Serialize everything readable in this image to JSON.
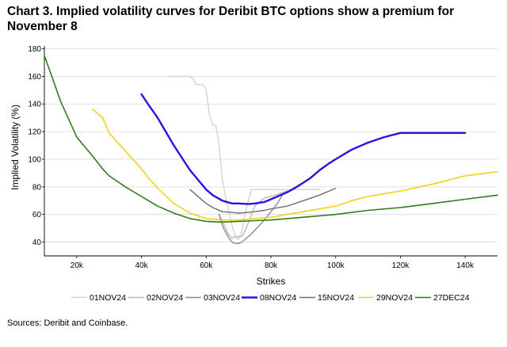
{
  "title": "Chart 3. Implied volatility curves for Deribit BTC options show a premium for November 8",
  "source": "Sources: Deribit and Coinbase.",
  "chart_data": {
    "type": "line",
    "xlabel": "Strikes",
    "ylabel": "Implied Volatility (%)",
    "xlim": [
      10000,
      150000
    ],
    "ylim": [
      30,
      182
    ],
    "x_ticks": [
      20000,
      40000,
      60000,
      80000,
      100000,
      120000,
      140000
    ],
    "x_tick_labels": [
      "20k",
      "40k",
      "60k",
      "80k",
      "100k",
      "120k",
      "140k"
    ],
    "y_ticks": [
      40,
      60,
      80,
      100,
      120,
      140,
      160,
      180
    ],
    "y_tick_labels": [
      "40",
      "60",
      "80",
      "100",
      "120",
      "140",
      "160",
      "180"
    ],
    "grid": "horizontal",
    "legend_position": "bottom",
    "series": [
      {
        "name": "01NOV24",
        "color": "#d3d3d3",
        "width": 1.4,
        "x": [
          48000,
          55000,
          56000,
          57000,
          59000,
          60000,
          61000,
          62000,
          63000,
          64000,
          65000,
          66000,
          67000,
          68000,
          69000,
          70000,
          71000,
          72000,
          73000,
          74000,
          75000,
          80000,
          95000
        ],
        "y": [
          160,
          160,
          158,
          154,
          154,
          150,
          132,
          125,
          124,
          110,
          85,
          72,
          62,
          52,
          44,
          42,
          48,
          60,
          70,
          78,
          78,
          78,
          78
        ]
      },
      {
        "name": "02NOV24",
        "color": "#b8b8b8",
        "width": 1.4,
        "x": [
          64000,
          65000,
          66000,
          67000,
          68000,
          69000,
          70000,
          71000,
          72000,
          73000,
          74000,
          75000,
          78000,
          80000,
          85000
        ],
        "y": [
          60,
          55,
          50,
          45,
          43,
          44,
          44,
          44,
          48,
          54,
          60,
          66,
          72,
          73,
          77
        ]
      },
      {
        "name": "03NOV24",
        "color": "#8c8c8c",
        "width": 1.4,
        "x": [
          64000,
          65000,
          66000,
          67000,
          68000,
          69000,
          70000,
          71000,
          72000,
          74000,
          76000,
          78000,
          80000,
          82000,
          84000
        ],
        "y": [
          60,
          52,
          47,
          43,
          40,
          39,
          39,
          40,
          42,
          46,
          51,
          56,
          62,
          68,
          76
        ]
      },
      {
        "name": "08NOV24",
        "color": "#2a12e6",
        "width": 2.4,
        "x": [
          40000,
          42000,
          45000,
          50000,
          55000,
          60000,
          62000,
          65000,
          68000,
          70000,
          73000,
          75000,
          78000,
          80000,
          82000,
          85000,
          88000,
          90000,
          92000,
          95000,
          98000,
          100000,
          105000,
          110000,
          115000,
          120000,
          125000,
          130000,
          135000,
          140000
        ],
        "y": [
          147,
          140,
          130,
          110,
          92,
          78,
          74,
          70,
          68,
          68,
          67.5,
          68,
          69,
          71,
          73,
          76,
          80,
          83,
          86,
          92,
          97,
          100,
          107,
          112,
          116,
          119,
          119,
          119,
          119,
          119
        ]
      },
      {
        "name": "15NOV24",
        "color": "#6e6e6e",
        "width": 1.4,
        "x": [
          55000,
          58000,
          60000,
          62000,
          65000,
          68000,
          70000,
          73000,
          75000,
          78000,
          80000,
          85000,
          90000,
          95000,
          100000
        ],
        "y": [
          78,
          72,
          68,
          65,
          62,
          61.5,
          61,
          61.5,
          62,
          63,
          64,
          66,
          70,
          74,
          79
        ]
      },
      {
        "name": "29NOV24",
        "color": "#f2d21c",
        "width": 1.6,
        "x": [
          25000,
          28000,
          30000,
          35000,
          40000,
          42000,
          45000,
          50000,
          55000,
          60000,
          65000,
          70000,
          75000,
          80000,
          85000,
          90000,
          95000,
          100000,
          105000,
          110000,
          120000,
          130000,
          140000,
          150000
        ],
        "y": [
          136,
          130,
          119,
          106,
          93,
          87,
          79,
          68,
          61,
          57,
          56,
          56,
          57,
          58,
          60,
          62,
          64,
          66,
          70,
          73,
          77,
          82,
          88,
          91
        ]
      },
      {
        "name": "27DEC24",
        "color": "#2e7d1b",
        "width": 1.6,
        "x": [
          10000,
          12000,
          15000,
          20000,
          25000,
          28000,
          30000,
          35000,
          40000,
          45000,
          50000,
          55000,
          60000,
          65000,
          70000,
          75000,
          80000,
          90000,
          100000,
          110000,
          120000,
          130000,
          140000,
          150000
        ],
        "y": [
          175,
          162,
          142,
          116,
          102,
          93,
          88,
          80,
          73,
          66,
          61,
          57,
          55,
          54.5,
          55,
          55.5,
          56,
          58,
          60,
          63,
          65,
          68,
          71,
          74
        ]
      }
    ]
  }
}
